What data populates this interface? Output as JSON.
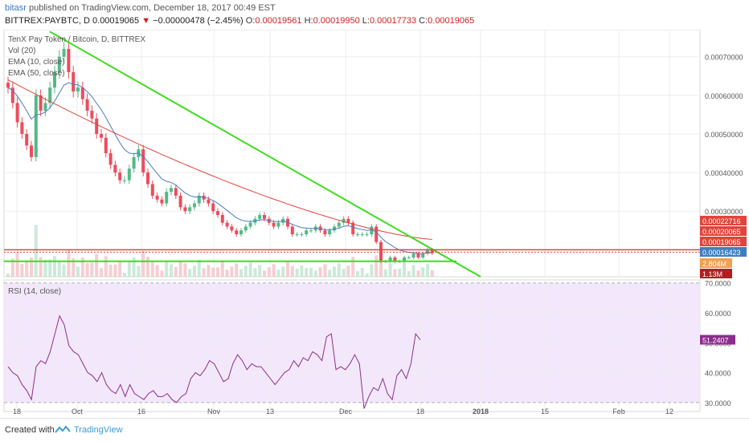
{
  "header": {
    "user": "bitasr",
    "published": "published on TradingView.com, December 18, 2017 00:49 EST",
    "symbol": "BITTREX:PAYBTC, D",
    "last": "0.00019065",
    "change_arrow": "▼",
    "change": "−0.00000478 (−2.45%)",
    "o_label": "O:",
    "o": "0.00019561",
    "h_label": "H:",
    "h": "0.00019950",
    "l_label": "L:",
    "l": "0.00017733",
    "c_label": "C:",
    "c": "0.00019065"
  },
  "legend": {
    "title": "TenX Pay Token / Bitcoin, D, BITTREX",
    "vol": "Vol (20)",
    "ema10": "EMA (10, close)",
    "ema50": "EMA (50, close)"
  },
  "rsi_label": "RSI (14, close)",
  "footer": {
    "created": "Created with",
    "brand": "TradingView"
  },
  "colors": {
    "up": "#53b987",
    "down": "#eb4d5c",
    "ema10": "#4a7cbf",
    "ema50": "#e0443c",
    "trend": "#3fdc1f",
    "rsi_line": "#8c2d8c",
    "rsi_fill": "#f3e8fb",
    "resistance": "#e0443c",
    "badge_red": "#e0443c",
    "badge_blue": "#3f7fbf"
  },
  "chart_data": [
    {
      "type": "candlestick",
      "title": "TenX Pay Token / Bitcoin, D, BITTREX",
      "y_ticks": [
        "0.00070000",
        "0.00060000",
        "0.00050000",
        "0.00040000",
        "0.00030000"
      ],
      "ylim": [
        0.00013,
        0.00077
      ],
      "x_ticks": [
        "18",
        "Oct",
        "16",
        "Nov",
        "13",
        "Dec",
        "18",
        "2018",
        "15",
        "Feb",
        "12"
      ],
      "price_badges": [
        {
          "label": "0.00022716",
          "color": "red"
        },
        {
          "label": "0.00020065",
          "color": "red"
        },
        {
          "label": "0.00019065",
          "color": "red"
        },
        {
          "label": "0.00016423",
          "color": "blue"
        },
        {
          "label": "2.804M",
          "color": "orange"
        },
        {
          "label": "1.13M",
          "color": "darkred"
        }
      ],
      "close": [
        0.00062,
        0.00058,
        0.00053,
        0.0005,
        0.00047,
        0.00044,
        0.0006,
        0.00056,
        0.00058,
        0.00062,
        0.00066,
        0.0007,
        0.00072,
        0.00066,
        0.00061,
        0.00062,
        0.00059,
        0.00056,
        0.00054,
        0.0005,
        0.00049,
        0.00045,
        0.00042,
        0.0004,
        0.00038,
        0.00038,
        0.00041,
        0.00044,
        0.00046,
        0.0004,
        0.00037,
        0.00034,
        0.00033,
        0.00032,
        0.00035,
        0.00036,
        0.00034,
        0.00031,
        0.0003,
        0.00031,
        0.00032,
        0.00034,
        0.00033,
        0.00032,
        0.0003,
        0.00029,
        0.00027,
        0.00026,
        0.00025,
        0.00024,
        0.00025,
        0.00026,
        0.00027,
        0.00028,
        0.00029,
        0.00028,
        0.00027,
        0.00026,
        0.00027,
        0.00028,
        0.00026,
        0.00024,
        0.00024,
        0.00024,
        0.00025,
        0.00025,
        0.00026,
        0.00025,
        0.00024,
        0.00025,
        0.00026,
        0.00027,
        0.00028,
        0.00027,
        0.00024,
        0.00024,
        0.00024,
        0.00024,
        0.00026,
        0.00022,
        0.00017,
        0.00017,
        0.00018,
        0.00017,
        0.00017,
        0.00018,
        0.00018,
        0.00019,
        0.00018,
        0.00019,
        0.0002,
        0.000191
      ],
      "ema10_desc": "tracks price",
      "ema50_start": 0.00064,
      "ema50_end": 0.000227,
      "trendline_desc": "descending green trendline from ~0.00076 at 28 Sep to ~0.00013 near 2018",
      "horizontal_lines": [
        {
          "name": "resistance",
          "value": 0.0002,
          "color": "red"
        },
        {
          "name": "support",
          "value": 0.00017,
          "color": "green"
        }
      ]
    },
    {
      "type": "line",
      "title": "RSI (14, close)",
      "y_ticks": [
        "70.0000",
        "60.0000",
        "50.0000",
        "40.0000",
        "30.0000"
      ],
      "ylim": [
        27,
        71
      ],
      "last_label": "51.2407",
      "values": [
        42,
        40,
        39,
        36,
        34,
        31,
        42,
        44,
        43,
        47,
        53,
        59,
        56,
        49,
        47,
        46,
        43,
        40,
        39,
        37,
        40,
        36,
        34,
        33,
        36,
        32,
        36,
        33,
        32,
        31,
        33,
        34,
        32,
        32,
        33,
        31,
        30,
        32,
        33,
        38,
        40,
        39,
        41,
        44,
        43,
        40,
        37,
        38,
        43,
        46,
        44,
        41,
        43,
        42,
        42,
        40,
        38,
        36,
        38,
        40,
        41,
        44,
        42,
        45,
        44,
        47,
        46,
        44,
        52,
        53,
        41,
        42,
        41,
        43,
        46,
        43,
        28,
        32,
        35,
        34,
        38,
        33,
        31,
        39,
        41,
        38,
        43,
        53,
        51
      ]
    }
  ]
}
